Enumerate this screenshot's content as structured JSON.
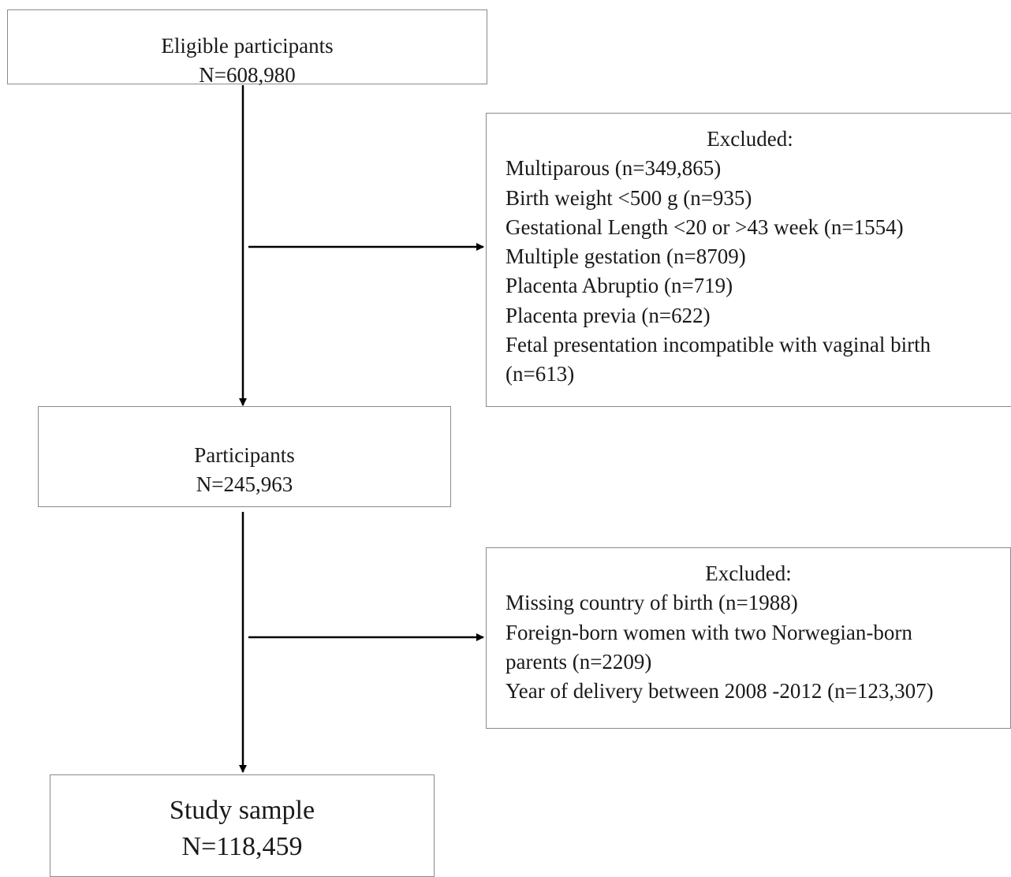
{
  "eligible": {
    "title": "Eligible participants",
    "count": "N=608,980"
  },
  "exclusion_1": {
    "title": "Excluded:",
    "items": [
      "Multiparous (n=349,865)",
      "Birth weight <500 g (n=935)",
      "Gestational Length <20 or >43 week (n=1554)",
      "Multiple gestation (n=8709)",
      "Placenta Abruptio  (n=719)",
      "Placenta previa (n=622)",
      "Fetal presentation incompatible with vaginal birth (n=613)"
    ]
  },
  "participants": {
    "title": "Participants",
    "count": "N=245,963"
  },
  "exclusion_2": {
    "title": "Excluded:",
    "items": [
      "Missing country of birth (n=1988)",
      "Foreign-born women with two Norwegian-born parents (n=2209)",
      "Year of delivery between 2008 -2012 (n=123,307)"
    ]
  },
  "study_sample": {
    "title": "Study sample",
    "count": "N=118,459"
  },
  "colors": {
    "border": "#8a8a8a",
    "arrow": "#000000",
    "text": "#1a1a1a"
  }
}
